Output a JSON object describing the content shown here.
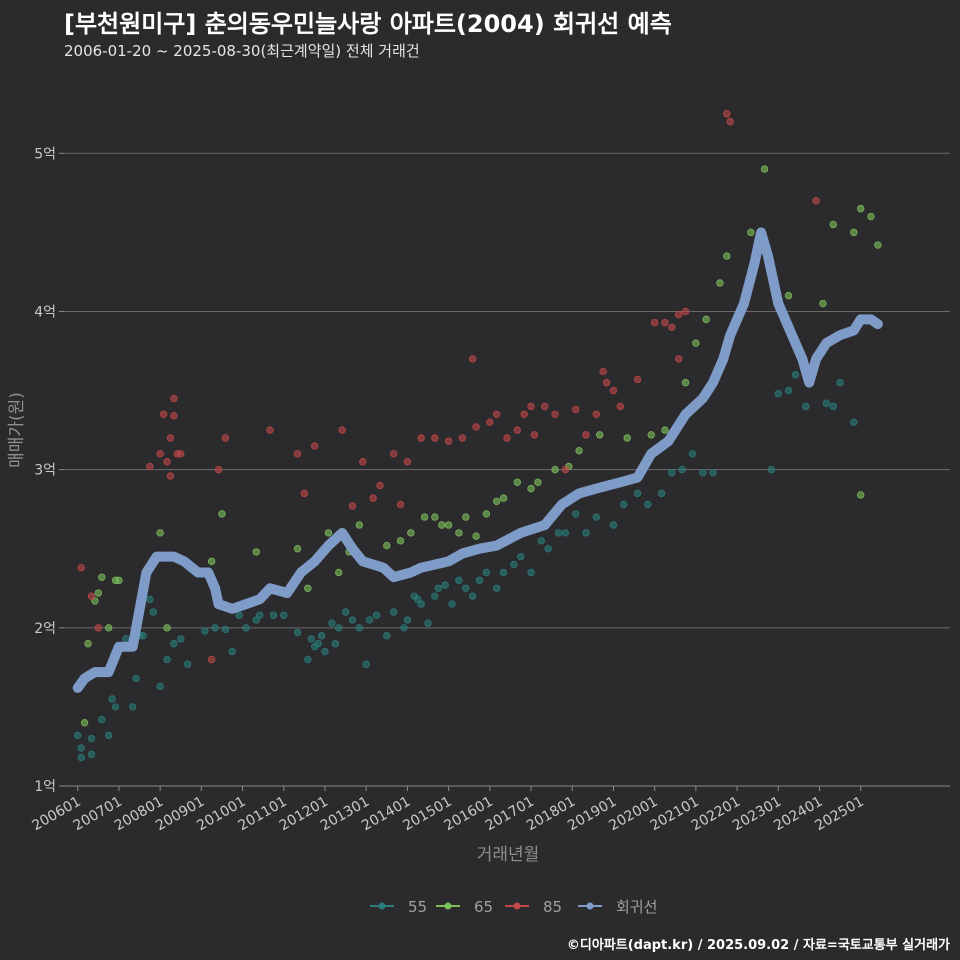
{
  "header": {
    "title": "[부천원미구] 춘의동우민늘사랑 아파트(2004) 회귀선 예측",
    "subtitle": "2006-01-20 ~ 2025-08-30(최근계약일) 전체 거래건"
  },
  "footer": {
    "credit": "©디아파트(dapt.kr) / 2025.09.02 / 자료=국토교통부 실거래가"
  },
  "colors": {
    "background": "#2b2a2d",
    "grid": "#6a6a6a",
    "s55": "#2a7d7a",
    "s65": "#7dbf5a",
    "s85": "#c04848",
    "regression": "#7f9cc8"
  },
  "chart_data": {
    "type": "scatter",
    "xlabel": "거래년월",
    "ylabel": "매매가(원)",
    "xlim": [
      "2005-09",
      "2027-03"
    ],
    "ylim": [
      1,
      5.4
    ],
    "y_unit": "억",
    "y_ticks": [
      {
        "value": 1,
        "label": "1억"
      },
      {
        "value": 2,
        "label": "2억"
      },
      {
        "value": 3,
        "label": "3억"
      },
      {
        "value": 4,
        "label": "4억"
      },
      {
        "value": 5,
        "label": "5억"
      }
    ],
    "x_ticks": [
      "200601",
      "200701",
      "200801",
      "200901",
      "201001",
      "201101",
      "201201",
      "201301",
      "201401",
      "201501",
      "201601",
      "201701",
      "201801",
      "201901",
      "202001",
      "202101",
      "202201",
      "202301",
      "202401",
      "202501"
    ],
    "grid": "horizontal",
    "legend_position": "bottom",
    "series": [
      {
        "name": "55",
        "color": "#2a7d7a",
        "points": [
          [
            "2006-01",
            1.32
          ],
          [
            "2006-02",
            1.18
          ],
          [
            "2006-02",
            1.24
          ],
          [
            "2006-05",
            1.2
          ],
          [
            "2006-05",
            1.3
          ],
          [
            "2006-08",
            1.42
          ],
          [
            "2006-10",
            1.32
          ],
          [
            "2006-11",
            1.55
          ],
          [
            "2006-12",
            1.5
          ],
          [
            "2007-03",
            1.93
          ],
          [
            "2007-05",
            1.5
          ],
          [
            "2007-06",
            1.68
          ],
          [
            "2007-07",
            1.95
          ],
          [
            "2007-08",
            1.95
          ],
          [
            "2007-10",
            2.18
          ],
          [
            "2007-11",
            2.1
          ],
          [
            "2008-01",
            1.63
          ],
          [
            "2008-03",
            1.8
          ],
          [
            "2008-05",
            1.9
          ],
          [
            "2008-07",
            1.93
          ],
          [
            "2008-09",
            1.77
          ],
          [
            "2009-02",
            1.98
          ],
          [
            "2009-05",
            2.0
          ],
          [
            "2009-08",
            1.99
          ],
          [
            "2009-10",
            1.85
          ],
          [
            "2009-12",
            2.08
          ],
          [
            "2010-02",
            2.0
          ],
          [
            "2010-05",
            2.05
          ],
          [
            "2010-06",
            2.08
          ],
          [
            "2010-10",
            2.08
          ],
          [
            "2011-01",
            2.08
          ],
          [
            "2011-05",
            1.97
          ],
          [
            "2011-08",
            1.8
          ],
          [
            "2011-09",
            1.93
          ],
          [
            "2011-10",
            1.88
          ],
          [
            "2011-11",
            1.9
          ],
          [
            "2011-12",
            1.95
          ],
          [
            "2012-01",
            1.85
          ],
          [
            "2012-03",
            2.03
          ],
          [
            "2012-04",
            1.9
          ],
          [
            "2012-05",
            2.0
          ],
          [
            "2012-07",
            2.1
          ],
          [
            "2012-09",
            2.05
          ],
          [
            "2012-11",
            2.0
          ],
          [
            "2013-01",
            1.77
          ],
          [
            "2013-02",
            2.05
          ],
          [
            "2013-04",
            2.08
          ],
          [
            "2013-07",
            1.95
          ],
          [
            "2013-09",
            2.1
          ],
          [
            "2013-12",
            2.0
          ],
          [
            "2014-01",
            2.05
          ],
          [
            "2014-03",
            2.2
          ],
          [
            "2014-04",
            2.18
          ],
          [
            "2014-05",
            2.15
          ],
          [
            "2014-07",
            2.03
          ],
          [
            "2014-09",
            2.2
          ],
          [
            "2014-10",
            2.25
          ],
          [
            "2014-12",
            2.27
          ],
          [
            "2015-02",
            2.15
          ],
          [
            "2015-04",
            2.3
          ],
          [
            "2015-06",
            2.25
          ],
          [
            "2015-08",
            2.2
          ],
          [
            "2015-10",
            2.3
          ],
          [
            "2015-12",
            2.35
          ],
          [
            "2016-03",
            2.25
          ],
          [
            "2016-05",
            2.35
          ],
          [
            "2016-08",
            2.4
          ],
          [
            "2016-10",
            2.45
          ],
          [
            "2017-01",
            2.35
          ],
          [
            "2017-04",
            2.55
          ],
          [
            "2017-06",
            2.5
          ],
          [
            "2017-09",
            2.6
          ],
          [
            "2017-11",
            2.6
          ],
          [
            "2018-02",
            2.72
          ],
          [
            "2018-05",
            2.6
          ],
          [
            "2018-08",
            2.7
          ],
          [
            "2019-01",
            2.65
          ],
          [
            "2019-04",
            2.78
          ],
          [
            "2019-08",
            2.85
          ],
          [
            "2019-11",
            2.78
          ],
          [
            "2020-03",
            2.85
          ],
          [
            "2020-06",
            2.98
          ],
          [
            "2020-09",
            3.0
          ],
          [
            "2020-12",
            3.1
          ],
          [
            "2021-03",
            2.98
          ],
          [
            "2021-06",
            2.98
          ],
          [
            "2022-11",
            3.0
          ],
          [
            "2023-01",
            3.48
          ],
          [
            "2023-04",
            3.5
          ],
          [
            "2023-06",
            3.6
          ],
          [
            "2023-09",
            3.4
          ],
          [
            "2023-11",
            3.65
          ],
          [
            "2024-03",
            3.42
          ],
          [
            "2024-05",
            3.4
          ],
          [
            "2024-07",
            3.55
          ],
          [
            "2024-11",
            3.3
          ]
        ]
      },
      {
        "name": "65",
        "color": "#7dbf5a",
        "points": [
          [
            "2006-03",
            1.4
          ],
          [
            "2006-04",
            1.9
          ],
          [
            "2006-06",
            2.17
          ],
          [
            "2006-07",
            2.22
          ],
          [
            "2006-08",
            2.32
          ],
          [
            "2006-10",
            2.0
          ],
          [
            "2006-12",
            2.3
          ],
          [
            "2007-01",
            2.3
          ],
          [
            "2008-01",
            2.6
          ],
          [
            "2008-03",
            2.0
          ],
          [
            "2009-04",
            2.42
          ],
          [
            "2009-07",
            2.72
          ],
          [
            "2010-05",
            2.48
          ],
          [
            "2011-05",
            2.5
          ],
          [
            "2011-08",
            2.25
          ],
          [
            "2012-02",
            2.6
          ],
          [
            "2012-05",
            2.35
          ],
          [
            "2012-08",
            2.48
          ],
          [
            "2012-11",
            2.65
          ],
          [
            "2013-07",
            2.52
          ],
          [
            "2013-11",
            2.55
          ],
          [
            "2014-02",
            2.6
          ],
          [
            "2014-06",
            2.7
          ],
          [
            "2014-09",
            2.7
          ],
          [
            "2014-11",
            2.65
          ],
          [
            "2015-01",
            2.65
          ],
          [
            "2015-04",
            2.6
          ],
          [
            "2015-06",
            2.7
          ],
          [
            "2015-09",
            2.58
          ],
          [
            "2015-12",
            2.72
          ],
          [
            "2016-03",
            2.8
          ],
          [
            "2016-05",
            2.82
          ],
          [
            "2016-09",
            2.92
          ],
          [
            "2017-01",
            2.88
          ],
          [
            "2017-03",
            2.92
          ],
          [
            "2017-08",
            3.0
          ],
          [
            "2017-12",
            3.02
          ],
          [
            "2018-03",
            3.12
          ],
          [
            "2018-09",
            3.22
          ],
          [
            "2019-05",
            3.2
          ],
          [
            "2019-12",
            3.22
          ],
          [
            "2020-04",
            3.25
          ],
          [
            "2020-10",
            3.55
          ],
          [
            "2021-01",
            3.8
          ],
          [
            "2021-04",
            3.95
          ],
          [
            "2021-08",
            4.18
          ],
          [
            "2021-10",
            4.35
          ],
          [
            "2022-05",
            4.5
          ],
          [
            "2022-09",
            4.9
          ],
          [
            "2023-04",
            4.1
          ],
          [
            "2024-02",
            4.05
          ],
          [
            "2024-05",
            4.55
          ],
          [
            "2024-11",
            4.5
          ],
          [
            "2025-01",
            4.65
          ],
          [
            "2025-04",
            4.6
          ],
          [
            "2025-06",
            4.42
          ],
          [
            "2025-01",
            2.84
          ]
        ]
      },
      {
        "name": "85",
        "color": "#c04848",
        "points": [
          [
            "2006-02",
            2.38
          ],
          [
            "2006-05",
            2.2
          ],
          [
            "2006-07",
            2.0
          ],
          [
            "2007-10",
            3.02
          ],
          [
            "2008-01",
            3.1
          ],
          [
            "2008-02",
            3.35
          ],
          [
            "2008-03",
            3.05
          ],
          [
            "2008-04",
            2.96
          ],
          [
            "2008-04",
            3.2
          ],
          [
            "2008-05",
            3.34
          ],
          [
            "2008-05",
            3.45
          ],
          [
            "2008-06",
            3.1
          ],
          [
            "2008-07",
            3.1
          ],
          [
            "2009-04",
            1.8
          ],
          [
            "2009-06",
            3.0
          ],
          [
            "2009-08",
            3.2
          ],
          [
            "2010-09",
            3.25
          ],
          [
            "2011-05",
            3.1
          ],
          [
            "2011-07",
            2.85
          ],
          [
            "2011-10",
            3.15
          ],
          [
            "2012-06",
            3.25
          ],
          [
            "2012-09",
            2.77
          ],
          [
            "2012-12",
            3.05
          ],
          [
            "2013-03",
            2.82
          ],
          [
            "2013-05",
            2.9
          ],
          [
            "2013-09",
            3.1
          ],
          [
            "2013-11",
            2.78
          ],
          [
            "2014-01",
            3.05
          ],
          [
            "2014-05",
            3.2
          ],
          [
            "2014-09",
            3.2
          ],
          [
            "2015-01",
            3.18
          ],
          [
            "2015-05",
            3.2
          ],
          [
            "2015-08",
            3.7
          ],
          [
            "2015-09",
            3.27
          ],
          [
            "2016-01",
            3.3
          ],
          [
            "2016-03",
            3.35
          ],
          [
            "2016-06",
            3.2
          ],
          [
            "2016-09",
            3.25
          ],
          [
            "2016-11",
            3.35
          ],
          [
            "2017-01",
            3.4
          ],
          [
            "2017-02",
            3.22
          ],
          [
            "2017-05",
            3.4
          ],
          [
            "2017-08",
            3.35
          ],
          [
            "2017-11",
            3.0
          ],
          [
            "2018-02",
            3.38
          ],
          [
            "2018-05",
            3.22
          ],
          [
            "2018-08",
            3.35
          ],
          [
            "2018-10",
            3.62
          ],
          [
            "2018-11",
            3.55
          ],
          [
            "2019-01",
            3.5
          ],
          [
            "2019-03",
            3.4
          ],
          [
            "2019-08",
            3.57
          ],
          [
            "2020-01",
            3.93
          ],
          [
            "2020-04",
            3.93
          ],
          [
            "2020-06",
            3.9
          ],
          [
            "2020-08",
            3.98
          ],
          [
            "2020-10",
            4.0
          ],
          [
            "2020-08",
            3.7
          ],
          [
            "2021-10",
            5.25
          ],
          [
            "2021-11",
            5.2
          ],
          [
            "2023-12",
            4.7
          ]
        ]
      }
    ],
    "regression": {
      "name": "회귀선",
      "color": "#7f9cc8",
      "points": [
        [
          "2006-01",
          1.62
        ],
        [
          "2006-03",
          1.68
        ],
        [
          "2006-06",
          1.72
        ],
        [
          "2006-10",
          1.72
        ],
        [
          "2007-01",
          1.88
        ],
        [
          "2007-05",
          1.88
        ],
        [
          "2007-09",
          2.35
        ],
        [
          "2007-12",
          2.45
        ],
        [
          "2008-05",
          2.45
        ],
        [
          "2008-08",
          2.42
        ],
        [
          "2008-12",
          2.35
        ],
        [
          "2009-03",
          2.35
        ],
        [
          "2009-05",
          2.25
        ],
        [
          "2009-06",
          2.15
        ],
        [
          "2009-10",
          2.12
        ],
        [
          "2010-02",
          2.15
        ],
        [
          "2010-06",
          2.18
        ],
        [
          "2010-09",
          2.25
        ],
        [
          "2011-02",
          2.22
        ],
        [
          "2011-06",
          2.35
        ],
        [
          "2011-10",
          2.42
        ],
        [
          "2012-02",
          2.52
        ],
        [
          "2012-06",
          2.6
        ],
        [
          "2012-09",
          2.5
        ],
        [
          "2012-12",
          2.42
        ],
        [
          "2013-06",
          2.38
        ],
        [
          "2013-09",
          2.32
        ],
        [
          "2014-02",
          2.35
        ],
        [
          "2014-05",
          2.38
        ],
        [
          "2015-01",
          2.42
        ],
        [
          "2015-05",
          2.47
        ],
        [
          "2015-10",
          2.5
        ],
        [
          "2016-03",
          2.52
        ],
        [
          "2016-10",
          2.6
        ],
        [
          "2017-05",
          2.65
        ],
        [
          "2017-10",
          2.78
        ],
        [
          "2018-03",
          2.85
        ],
        [
          "2018-08",
          2.88
        ],
        [
          "2019-03",
          2.92
        ],
        [
          "2019-08",
          2.95
        ],
        [
          "2019-12",
          3.1
        ],
        [
          "2020-05",
          3.18
        ],
        [
          "2020-10",
          3.35
        ],
        [
          "2021-03",
          3.45
        ],
        [
          "2021-06",
          3.55
        ],
        [
          "2021-09",
          3.7
        ],
        [
          "2021-11",
          3.85
        ],
        [
          "2022-03",
          4.05
        ],
        [
          "2022-06",
          4.3
        ],
        [
          "2022-08",
          4.5
        ],
        [
          "2022-10",
          4.35
        ],
        [
          "2023-01",
          4.05
        ],
        [
          "2023-05",
          3.85
        ],
        [
          "2023-08",
          3.7
        ],
        [
          "2023-10",
          3.55
        ],
        [
          "2023-12",
          3.7
        ],
        [
          "2024-03",
          3.8
        ],
        [
          "2024-07",
          3.85
        ],
        [
          "2024-11",
          3.88
        ],
        [
          "2025-01",
          3.95
        ],
        [
          "2025-04",
          3.95
        ],
        [
          "2025-06",
          3.92
        ]
      ]
    },
    "legend": [
      {
        "label": "55",
        "color": "#2a7d7a"
      },
      {
        "label": "65",
        "color": "#7dbf5a"
      },
      {
        "label": "85",
        "color": "#c04848"
      },
      {
        "label": "회귀선",
        "color": "#7f9cc8"
      }
    ]
  }
}
